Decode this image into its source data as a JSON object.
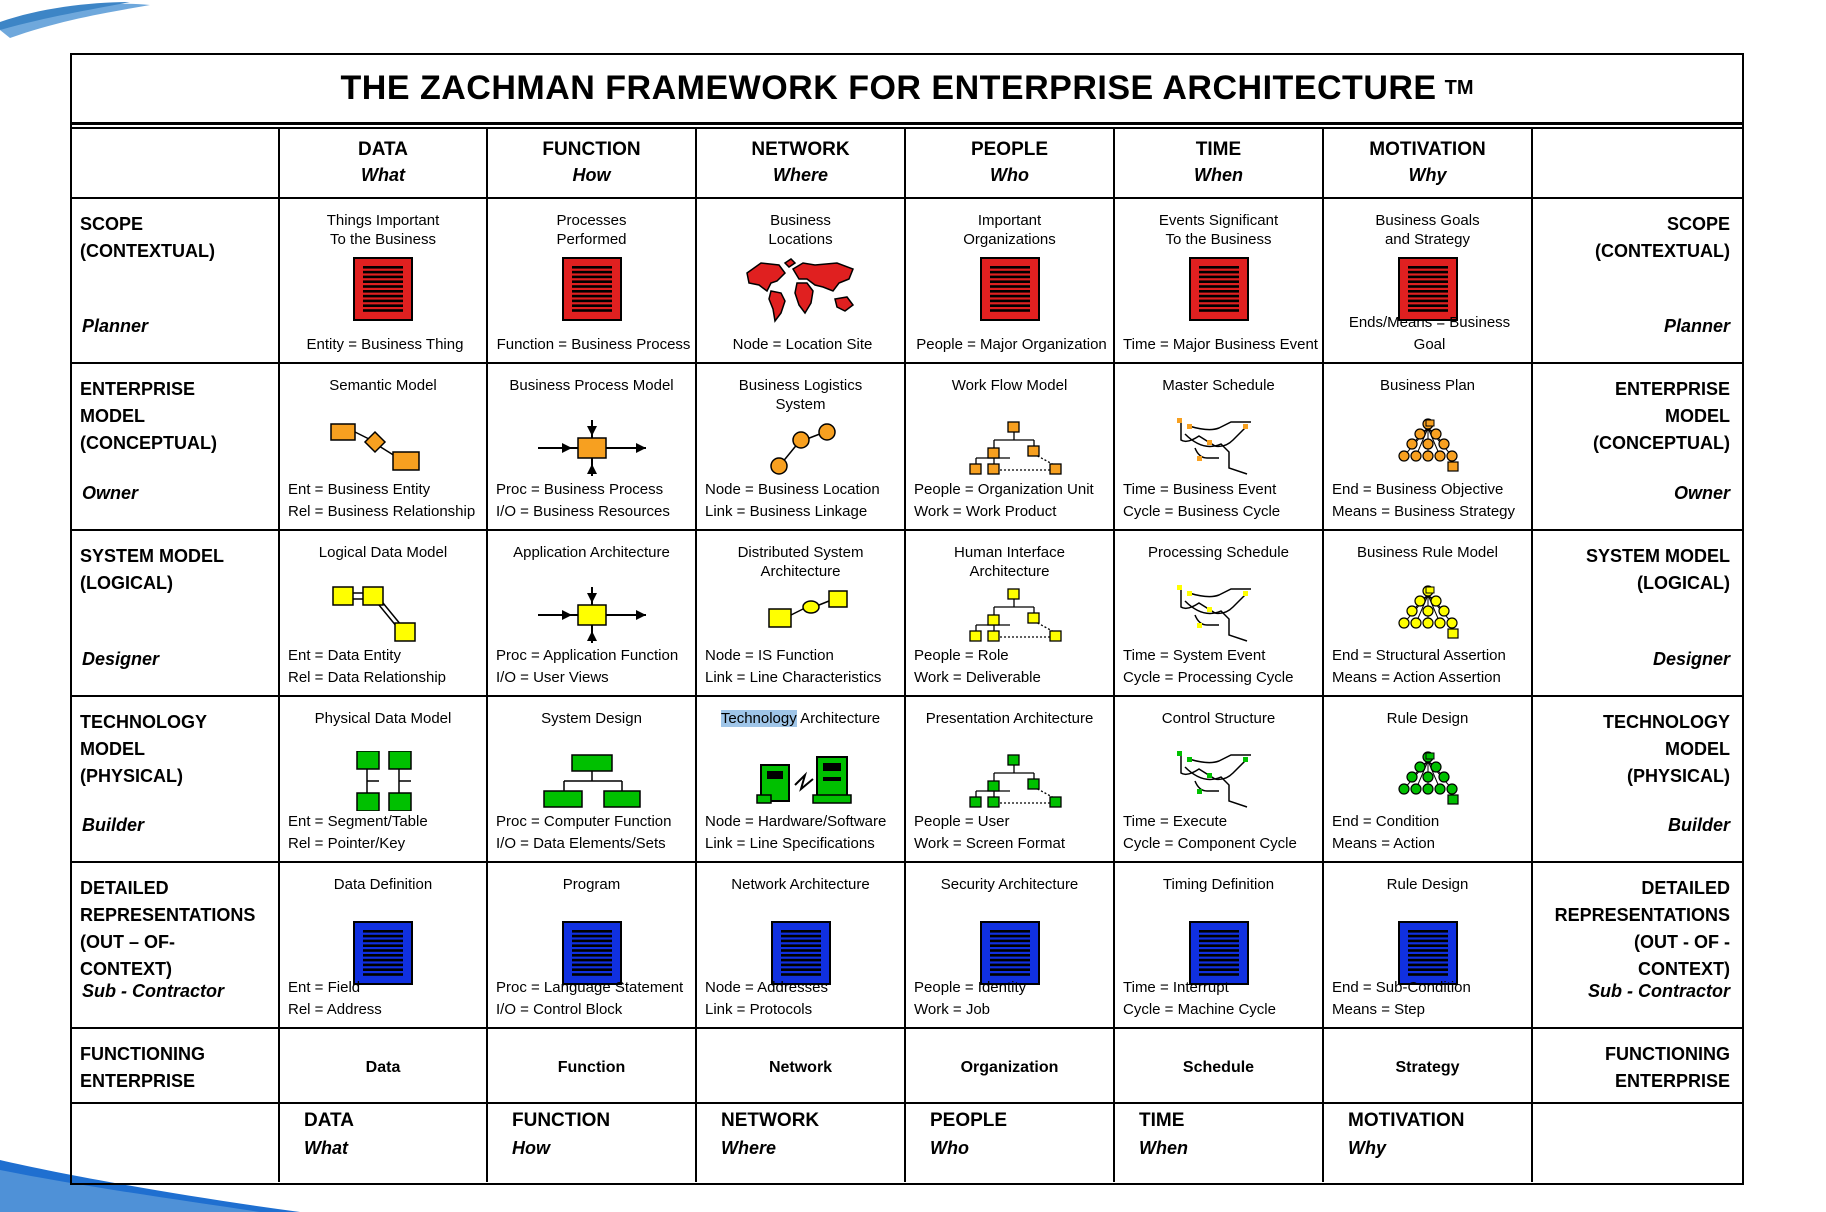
{
  "title": "THE ZACHMAN FRAMEWORK FOR ENTERPRISE ARCHITECTURE",
  "trademark": "TM",
  "colors": {
    "red": "#e02020",
    "orange": "#f7a020",
    "yellow": "#ffff00",
    "green": "#00c000",
    "blue": "#1030e0"
  },
  "columns": [
    {
      "name": "DATA",
      "question": "What"
    },
    {
      "name": "FUNCTION",
      "question": "How"
    },
    {
      "name": "NETWORK",
      "question": "Where"
    },
    {
      "name": "PEOPLE",
      "question": "Who"
    },
    {
      "name": "TIME",
      "question": "When"
    },
    {
      "name": "MOTIVATION",
      "question": "Why"
    }
  ],
  "rows": [
    {
      "left_lines": [
        "SCOPE",
        "(CONTEXTUAL)"
      ],
      "right_lines": [
        "SCOPE",
        "(CONTEXTUAL)"
      ],
      "role": "Planner",
      "cells": [
        {
          "title": [
            "Things Important",
            "To the Business"
          ],
          "foot": [
            "Entity = Business Thing"
          ],
          "icon": "red-document-icon"
        },
        {
          "title": [
            "Processes",
            "Performed"
          ],
          "foot": [
            "Function = Business Process"
          ],
          "icon": "red-document-icon"
        },
        {
          "title": [
            "Business",
            "Locations"
          ],
          "foot": [
            "Node = Location Site"
          ],
          "icon": "world-map-icon"
        },
        {
          "title": [
            "Important",
            "Organizations"
          ],
          "foot": [
            "People = Major Organization"
          ],
          "icon": "red-document-icon"
        },
        {
          "title": [
            "Events Significant",
            "To the Business"
          ],
          "foot": [
            "Time = Major Business Event"
          ],
          "icon": "red-document-icon"
        },
        {
          "title": [
            "Business Goals",
            "and Strategy"
          ],
          "foot": [
            "Ends/Means = Business Goal"
          ],
          "icon": "red-document-icon"
        }
      ]
    },
    {
      "left_lines": [
        "ENTERPRISE",
        "MODEL",
        "(CONCEPTUAL)"
      ],
      "right_lines": [
        "ENTERPRISE",
        "MODEL",
        "(CONCEPTUAL)"
      ],
      "role": "Owner",
      "cells": [
        {
          "title": [
            "Semantic Model"
          ],
          "foot": [
            "Ent = Business Entity",
            "Rel = Business Relationship"
          ],
          "icon": "entity-relationship-icon"
        },
        {
          "title": [
            "Business Process Model"
          ],
          "foot": [
            "Proc = Business Process",
            "I/O = Business Resources"
          ],
          "icon": "process-arrows-icon"
        },
        {
          "title": [
            "Business Logistics",
            "System"
          ],
          "foot": [
            "Node = Business Location",
            "Link = Business Linkage"
          ],
          "icon": "node-link-icon"
        },
        {
          "title": [
            "Work Flow Model"
          ],
          "foot": [
            "People = Organization Unit",
            "Work = Work Product"
          ],
          "icon": "org-chart-icon"
        },
        {
          "title": [
            "Master Schedule"
          ],
          "foot": [
            "Time = Business Event",
            "Cycle = Business Cycle"
          ],
          "icon": "schedule-icon"
        },
        {
          "title": [
            "Business Plan"
          ],
          "foot": [
            "End = Business Objective",
            "Means = Business Strategy"
          ],
          "icon": "pyramid-tree-icon"
        }
      ]
    },
    {
      "left_lines": [
        "SYSTEM MODEL",
        "(LOGICAL)"
      ],
      "right_lines": [
        "SYSTEM MODEL",
        "(LOGICAL)"
      ],
      "role": "Designer",
      "cells": [
        {
          "title": [
            "Logical Data Model"
          ],
          "foot": [
            "Ent = Data Entity",
            "Rel = Data Relationship"
          ],
          "icon": "entity-relationship-icon"
        },
        {
          "title": [
            "Application Architecture"
          ],
          "foot": [
            "Proc = Application Function",
            "I/O = User Views"
          ],
          "icon": "process-arrows-icon"
        },
        {
          "title": [
            "Distributed System",
            "Architecture"
          ],
          "foot": [
            "Node = IS Function",
            "Link = Line Characteristics"
          ],
          "icon": "distributed-nodes-icon"
        },
        {
          "title": [
            "Human Interface",
            "Architecture"
          ],
          "foot": [
            "People = Role",
            "Work = Deliverable"
          ],
          "icon": "org-chart-icon"
        },
        {
          "title": [
            "Processing Schedule"
          ],
          "foot": [
            "Time = System Event",
            "Cycle = Processing Cycle"
          ],
          "icon": "schedule-icon"
        },
        {
          "title": [
            "Business Rule Model"
          ],
          "foot": [
            "End = Structural Assertion",
            "Means = Action Assertion"
          ],
          "icon": "pyramid-tree-icon"
        }
      ]
    },
    {
      "left_lines": [
        "TECHNOLOGY",
        "MODEL",
        "(PHYSICAL)"
      ],
      "right_lines": [
        "TECHNOLOGY",
        "MODEL",
        "(PHYSICAL)"
      ],
      "role": "Builder",
      "cells": [
        {
          "title": [
            "Physical Data Model"
          ],
          "foot": [
            "Ent = Segment/Table",
            "Rel = Pointer/Key"
          ],
          "icon": "segment-table-icon"
        },
        {
          "title": [
            "System Design"
          ],
          "foot": [
            "Proc = Computer Function",
            "I/O = Data Elements/Sets"
          ],
          "icon": "system-hierarchy-icon"
        },
        {
          "title_hl": "Technology",
          "title_rest": " Architecture",
          "foot": [
            "Node = Hardware/Software",
            "Link = Line Specifications"
          ],
          "icon": "hardware-icon"
        },
        {
          "title": [
            "Presentation Architecture"
          ],
          "foot": [
            "People = User",
            "Work = Screen Format"
          ],
          "icon": "org-chart-icon"
        },
        {
          "title": [
            "Control Structure"
          ],
          "foot": [
            "Time = Execute",
            "Cycle = Component Cycle"
          ],
          "icon": "schedule-icon"
        },
        {
          "title": [
            "Rule Design"
          ],
          "foot": [
            "End = Condition",
            "Means = Action"
          ],
          "icon": "pyramid-tree-icon"
        }
      ]
    },
    {
      "left_lines": [
        "DETAILED",
        "REPRESENTATIONS",
        "(OUT – OF- CONTEXT)"
      ],
      "right_lines": [
        "DETAILED",
        "REPRESENTATIONS",
        "(OUT - OF - CONTEXT)"
      ],
      "role": "Sub - Contractor",
      "cells": [
        {
          "title": [
            "Data Definition"
          ],
          "foot": [
            "Ent = Field",
            "Rel = Address"
          ],
          "icon": "blue-document-icon"
        },
        {
          "title": [
            "Program"
          ],
          "foot": [
            "Proc = Language Statement",
            "I/O = Control Block"
          ],
          "icon": "blue-document-icon"
        },
        {
          "title": [
            "Network Architecture"
          ],
          "foot": [
            "Node = Addresses",
            "Link = Protocols"
          ],
          "icon": "blue-document-icon"
        },
        {
          "title": [
            "Security Architecture"
          ],
          "foot": [
            "People = Identity",
            "Work = Job"
          ],
          "icon": "blue-document-icon"
        },
        {
          "title": [
            "Timing Definition"
          ],
          "foot": [
            "Time = Interrupt",
            "Cycle = Machine Cycle"
          ],
          "icon": "blue-document-icon"
        },
        {
          "title": [
            "Rule Design"
          ],
          "foot": [
            "End = Sub-Condition",
            "Means = Step"
          ],
          "icon": "blue-document-icon"
        }
      ]
    }
  ],
  "functioning": {
    "left_lines": [
      "FUNCTIONING",
      "ENTERPRISE"
    ],
    "right_lines": [
      "FUNCTIONING",
      "ENTERPRISE"
    ],
    "cells": [
      "Data",
      "Function",
      "Network",
      "Organization",
      "Schedule",
      "Strategy"
    ]
  }
}
